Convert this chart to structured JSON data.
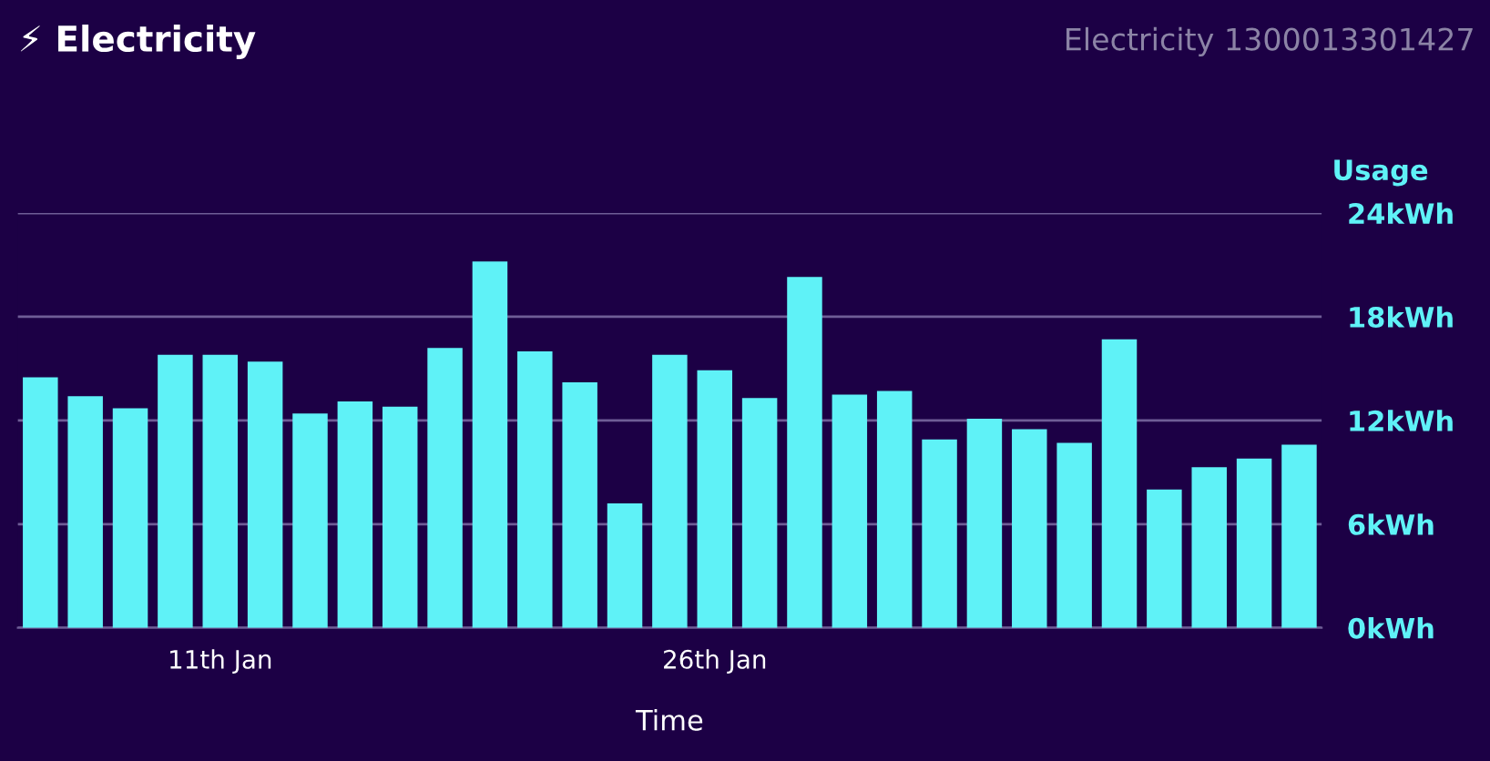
{
  "chart_data": {
    "type": "bar",
    "title": "⚡ Electricity",
    "subtitle": "Electricity 1300013301427",
    "xlabel": "Time",
    "ylabel": "Usage",
    "categories": [
      null,
      null,
      null,
      null,
      "11th Jan",
      null,
      null,
      null,
      null,
      null,
      null,
      null,
      null,
      null,
      null,
      "26th Jan",
      null,
      null,
      null,
      null,
      null,
      null,
      null,
      null,
      null,
      null,
      null,
      null,
      null
    ],
    "values": [
      14.5,
      13.4,
      12.7,
      15.8,
      15.8,
      15.4,
      12.4,
      13.1,
      12.8,
      16.2,
      21.2,
      16.0,
      14.2,
      7.2,
      15.8,
      14.9,
      13.3,
      20.3,
      13.5,
      13.7,
      10.9,
      12.1,
      11.5,
      10.7,
      16.7,
      8.0,
      9.3,
      9.8,
      10.6
    ],
    "color": "#5ff2f7",
    "ylim": [
      0,
      24
    ],
    "yticks": [
      {
        "value": 0,
        "label": "0kWh"
      },
      {
        "value": 6,
        "label": "6kWh"
      },
      {
        "value": 12,
        "label": "12kWh"
      },
      {
        "value": 18,
        "label": "18kWh"
      },
      {
        "value": 24,
        "label": "24kWh"
      }
    ],
    "grid": "y"
  }
}
